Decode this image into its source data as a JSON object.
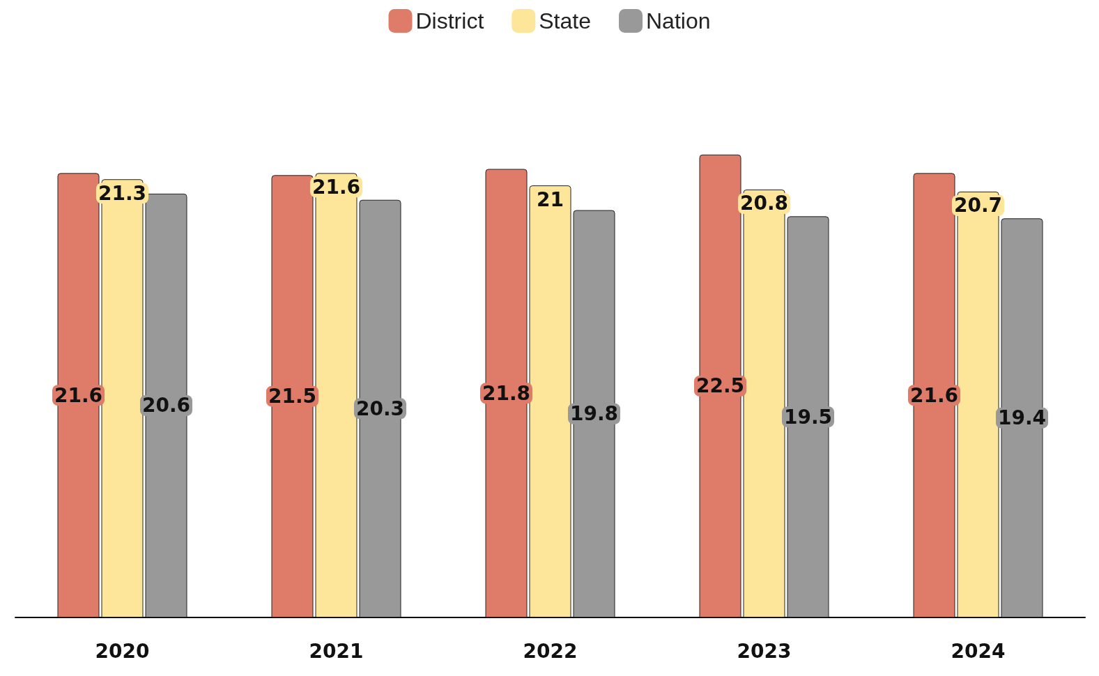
{
  "chart_data": {
    "type": "bar",
    "categories": [
      "2020",
      "2021",
      "2022",
      "2023",
      "2024"
    ],
    "series": [
      {
        "name": "District",
        "color": "#de7c69",
        "values": [
          21.6,
          21.5,
          21.8,
          22.5,
          21.6
        ]
      },
      {
        "name": "State",
        "color": "#fde59a",
        "values": [
          21.3,
          21.6,
          21,
          20.8,
          20.7
        ]
      },
      {
        "name": "Nation",
        "color": "#999999",
        "values": [
          20.6,
          20.3,
          19.8,
          19.5,
          19.4
        ]
      }
    ],
    "data_labels": true,
    "legend": "top"
  }
}
